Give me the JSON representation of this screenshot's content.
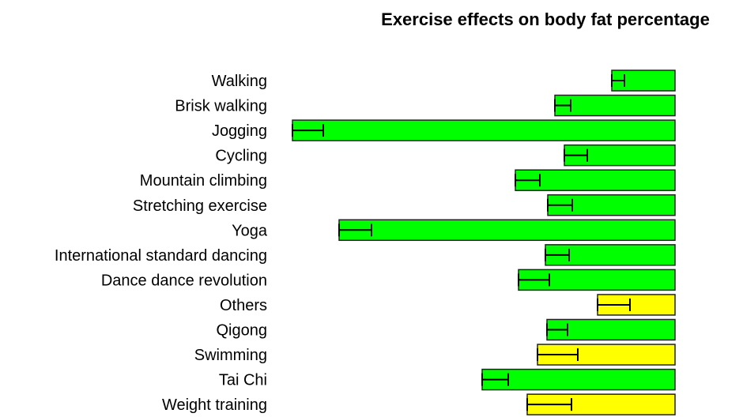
{
  "chart_data": {
    "type": "bar",
    "orientation": "horizontal",
    "title": "Exercise effects on body fat percentage",
    "xlabel": "",
    "ylabel": "",
    "xlim": [
      -10,
      0
    ],
    "grid": false,
    "categories": [
      "Walking",
      "Brisk walking",
      "Jogging",
      "Cycling",
      "Mountain climbing",
      "Stretching exercise",
      "Yoga",
      "International standard dancing",
      "Dance dance revolution",
      "Others",
      "Qigong",
      "Swimming",
      "Tai Chi",
      "Weight training"
    ],
    "values": [
      -1.6,
      -3.04,
      -9.68,
      -2.8,
      -4.04,
      -3.22,
      -8.5,
      -3.28,
      -3.96,
      -1.96,
      -3.24,
      -3.48,
      -4.88,
      -3.74
    ],
    "errors": [
      0.32,
      0.4,
      0.78,
      0.58,
      0.62,
      0.62,
      0.82,
      0.6,
      0.78,
      0.82,
      0.52,
      1.02,
      0.66,
      1.12
    ],
    "bar_colors": [
      "#00ff00",
      "#00ff00",
      "#00ff00",
      "#00ff00",
      "#00ff00",
      "#00ff00",
      "#00ff00",
      "#00ff00",
      "#00ff00",
      "#ffff00",
      "#00ff00",
      "#ffff00",
      "#00ff00",
      "#ffff00"
    ]
  }
}
